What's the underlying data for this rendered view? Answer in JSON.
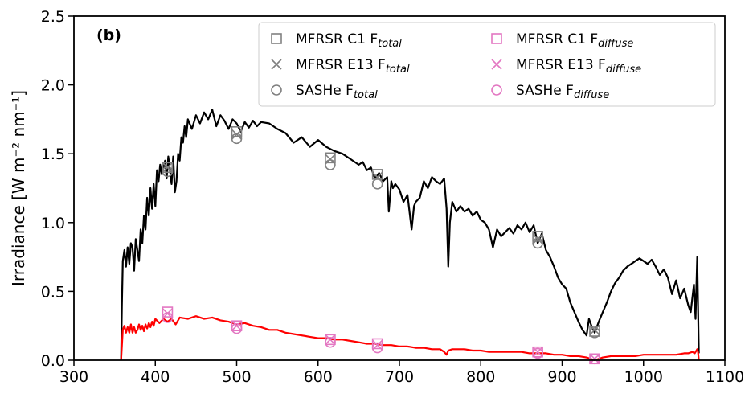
{
  "chart_data": {
    "type": "line",
    "title": "",
    "panel_label": "(b)",
    "ylabel": "Irradiance [W m⁻² nm⁻¹]",
    "xlim": [
      300,
      1100
    ],
    "ylim": [
      0.0,
      2.5
    ],
    "xticks": [
      300,
      400,
      500,
      600,
      700,
      800,
      900,
      1000,
      1100
    ],
    "yticks": [
      0.0,
      0.5,
      1.0,
      1.5,
      2.0,
      2.5
    ],
    "ytick_labels": [
      "0.0",
      "0.5",
      "1.0",
      "1.5",
      "2.0",
      "2.5"
    ],
    "grid": false,
    "legend_position": "top-right",
    "lines": [
      {
        "color": "#000000",
        "x": [
          358,
          359,
          360,
          362,
          364,
          366,
          368,
          370,
          372,
          374,
          376,
          378,
          380,
          382,
          384,
          386,
          388,
          390,
          392,
          394,
          396,
          398,
          400,
          402,
          404,
          406,
          408,
          410,
          412,
          414,
          416,
          418,
          420,
          422,
          424,
          426,
          428,
          430,
          432,
          434,
          436,
          438,
          440,
          445,
          450,
          455,
          460,
          465,
          470,
          475,
          480,
          485,
          490,
          495,
          500,
          505,
          510,
          515,
          520,
          525,
          530,
          540,
          550,
          560,
          570,
          580,
          590,
          600,
          610,
          620,
          630,
          640,
          650,
          655,
          660,
          665,
          670,
          675,
          680,
          685,
          687,
          690,
          692,
          695,
          700,
          705,
          710,
          715,
          718,
          720,
          725,
          730,
          735,
          740,
          745,
          750,
          755,
          758,
          760,
          762,
          765,
          770,
          775,
          780,
          785,
          790,
          795,
          800,
          805,
          810,
          815,
          820,
          825,
          830,
          835,
          840,
          845,
          850,
          855,
          860,
          865,
          870,
          875,
          880,
          885,
          890,
          895,
          900,
          905,
          910,
          915,
          920,
          925,
          930,
          933,
          936,
          940,
          945,
          950,
          955,
          960,
          965,
          970,
          975,
          980,
          985,
          990,
          995,
          1000,
          1005,
          1010,
          1015,
          1020,
          1025,
          1030,
          1035,
          1040,
          1045,
          1050,
          1055,
          1058,
          1062,
          1064,
          1066,
          1067,
          1068
        ],
        "y": [
          0.0,
          0.4,
          0.72,
          0.8,
          0.68,
          0.82,
          0.7,
          0.85,
          0.82,
          0.65,
          0.88,
          0.8,
          0.72,
          0.95,
          0.85,
          1.05,
          0.95,
          1.18,
          1.05,
          1.25,
          1.1,
          1.28,
          1.12,
          1.38,
          1.3,
          1.42,
          1.35,
          1.4,
          1.45,
          1.32,
          1.48,
          1.38,
          1.28,
          1.48,
          1.22,
          1.3,
          1.5,
          1.45,
          1.62,
          1.58,
          1.7,
          1.62,
          1.75,
          1.68,
          1.78,
          1.72,
          1.8,
          1.75,
          1.82,
          1.7,
          1.78,
          1.74,
          1.68,
          1.75,
          1.72,
          1.66,
          1.73,
          1.69,
          1.74,
          1.7,
          1.73,
          1.72,
          1.68,
          1.65,
          1.58,
          1.62,
          1.55,
          1.6,
          1.55,
          1.52,
          1.5,
          1.46,
          1.42,
          1.44,
          1.38,
          1.4,
          1.32,
          1.36,
          1.3,
          1.33,
          1.08,
          1.3,
          1.25,
          1.28,
          1.24,
          1.15,
          1.2,
          0.95,
          1.12,
          1.15,
          1.18,
          1.3,
          1.25,
          1.33,
          1.3,
          1.28,
          1.32,
          1.1,
          0.68,
          1.0,
          1.15,
          1.08,
          1.12,
          1.08,
          1.1,
          1.05,
          1.08,
          1.02,
          1.0,
          0.95,
          0.82,
          0.95,
          0.9,
          0.93,
          0.96,
          0.92,
          0.98,
          0.95,
          1.0,
          0.93,
          0.98,
          0.85,
          0.92,
          0.8,
          0.75,
          0.68,
          0.6,
          0.55,
          0.52,
          0.42,
          0.35,
          0.28,
          0.22,
          0.18,
          0.3,
          0.25,
          0.2,
          0.28,
          0.35,
          0.42,
          0.5,
          0.56,
          0.6,
          0.65,
          0.68,
          0.7,
          0.72,
          0.74,
          0.72,
          0.7,
          0.73,
          0.68,
          0.62,
          0.66,
          0.6,
          0.48,
          0.58,
          0.45,
          0.52,
          0.4,
          0.35,
          0.55,
          0.3,
          0.75,
          0.4,
          0.05
        ]
      },
      {
        "color": "#ff0000",
        "x": [
          358,
          360,
          362,
          364,
          366,
          368,
          370,
          372,
          374,
          376,
          378,
          380,
          382,
          384,
          386,
          388,
          390,
          392,
          394,
          396,
          398,
          400,
          405,
          410,
          415,
          420,
          425,
          430,
          440,
          450,
          460,
          470,
          480,
          490,
          500,
          510,
          520,
          530,
          540,
          550,
          560,
          570,
          580,
          590,
          600,
          610,
          620,
          630,
          640,
          650,
          660,
          670,
          680,
          690,
          700,
          710,
          720,
          730,
          740,
          750,
          755,
          758,
          760,
          765,
          770,
          780,
          790,
          800,
          810,
          820,
          830,
          840,
          850,
          860,
          870,
          880,
          890,
          900,
          910,
          920,
          930,
          935,
          940,
          945,
          950,
          960,
          970,
          980,
          990,
          1000,
          1010,
          1020,
          1030,
          1040,
          1050,
          1055,
          1060,
          1063,
          1066,
          1067,
          1068
        ],
        "y": [
          0.0,
          0.22,
          0.25,
          0.2,
          0.24,
          0.2,
          0.26,
          0.2,
          0.24,
          0.2,
          0.22,
          0.26,
          0.22,
          0.25,
          0.21,
          0.26,
          0.23,
          0.27,
          0.24,
          0.28,
          0.25,
          0.3,
          0.27,
          0.3,
          0.28,
          0.3,
          0.26,
          0.31,
          0.3,
          0.32,
          0.3,
          0.31,
          0.29,
          0.28,
          0.26,
          0.27,
          0.25,
          0.24,
          0.22,
          0.22,
          0.2,
          0.19,
          0.18,
          0.17,
          0.16,
          0.16,
          0.15,
          0.15,
          0.14,
          0.13,
          0.12,
          0.12,
          0.11,
          0.11,
          0.1,
          0.1,
          0.09,
          0.09,
          0.08,
          0.08,
          0.06,
          0.04,
          0.07,
          0.08,
          0.08,
          0.08,
          0.07,
          0.07,
          0.06,
          0.06,
          0.06,
          0.06,
          0.06,
          0.05,
          0.05,
          0.05,
          0.04,
          0.04,
          0.03,
          0.03,
          0.02,
          0.01,
          0.0,
          0.01,
          0.02,
          0.03,
          0.03,
          0.03,
          0.03,
          0.04,
          0.04,
          0.04,
          0.04,
          0.04,
          0.05,
          0.05,
          0.06,
          0.05,
          0.08,
          0.06,
          0.0
        ]
      }
    ],
    "series": [
      {
        "name": "MFRSR C1 F",
        "subscript": "total",
        "marker": "square",
        "color": "#808080",
        "x": [
          415,
          500,
          615,
          673,
          870,
          940
        ],
        "y": [
          1.4,
          1.66,
          1.47,
          1.35,
          0.9,
          0.21
        ]
      },
      {
        "name": "MFRSR E13 F",
        "subscript": "total",
        "marker": "x",
        "color": "#808080",
        "x": [
          415,
          500,
          615,
          673,
          870,
          940
        ],
        "y": [
          1.4,
          1.64,
          1.46,
          1.33,
          0.88,
          0.22
        ]
      },
      {
        "name": "SASHe F",
        "subscript": "total",
        "marker": "circle",
        "color": "#808080",
        "x": [
          415,
          500,
          615,
          673,
          870,
          940
        ],
        "y": [
          1.37,
          1.61,
          1.42,
          1.28,
          0.85,
          0.2
        ]
      },
      {
        "name": "MFRSR C1 F",
        "subscript": "diffuse",
        "marker": "square",
        "color": "#e377c2",
        "x": [
          415,
          500,
          615,
          673,
          870,
          940
        ],
        "y": [
          0.35,
          0.25,
          0.15,
          0.12,
          0.06,
          0.01
        ]
      },
      {
        "name": "MFRSR E13 F",
        "subscript": "diffuse",
        "marker": "x",
        "color": "#e377c2",
        "x": [
          415,
          500,
          615,
          673,
          870,
          940
        ],
        "y": [
          0.34,
          0.25,
          0.15,
          0.11,
          0.06,
          0.01
        ]
      },
      {
        "name": "SASHe F",
        "subscript": "diffuse",
        "marker": "circle",
        "color": "#e377c2",
        "x": [
          415,
          500,
          615,
          673,
          870,
          940
        ],
        "y": [
          0.31,
          0.23,
          0.13,
          0.09,
          0.05,
          0.01
        ]
      }
    ]
  }
}
